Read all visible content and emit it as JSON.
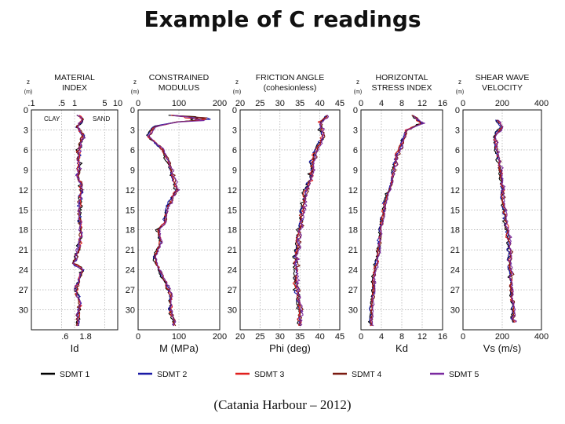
{
  "title": "Example of C readings",
  "caption": "(Catania Harbour – 2012)",
  "chart_data": {
    "type": "line",
    "depth_axis": {
      "label": "z",
      "unit": "(m)",
      "ticks": [
        0,
        3,
        6,
        9,
        12,
        15,
        18,
        21,
        24,
        27,
        30
      ],
      "ylim": [
        0,
        33
      ],
      "inverted": true
    },
    "legend": {
      "placement": "bottom",
      "entries": [
        {
          "name": "SDMT 1",
          "color": "#000000"
        },
        {
          "name": "SDMT 2",
          "color": "#1a1aa6"
        },
        {
          "name": "SDMT 3",
          "color": "#e0201e"
        },
        {
          "name": "SDMT 4",
          "color": "#7a1a10"
        },
        {
          "name": "SDMT 5",
          "color": "#7a2aa0"
        }
      ]
    },
    "panels": [
      {
        "id": "id",
        "title": [
          "MATERIAL",
          "INDEX"
        ],
        "scale": "log",
        "xlim": [
          0.1,
          10
        ],
        "top_ticks": [
          {
            "label": ".1",
            "value": 0.1
          },
          {
            "label": ".5",
            "value": 0.5
          },
          {
            "label": "1",
            "value": 1
          },
          {
            "label": "5",
            "value": 5
          },
          {
            "label": "10",
            "value": 10
          }
        ],
        "bottom_ticks": [
          {
            "label": ".6",
            "value": 0.6
          },
          {
            "label": "1.8",
            "value": 1.8
          }
        ],
        "xlabel": "Id",
        "annotations": [
          "CLAY",
          "SAND"
        ],
        "profile": [
          [
            0.8,
            1.2
          ],
          [
            1.5,
            1.6
          ],
          [
            2.5,
            1.1
          ],
          [
            3,
            1.3
          ],
          [
            4,
            1.6
          ],
          [
            6,
            1.2
          ],
          [
            8,
            1.3
          ],
          [
            10,
            1.2
          ],
          [
            12,
            1.5
          ],
          [
            14,
            1.3
          ],
          [
            16,
            1.3
          ],
          [
            18,
            1.4
          ],
          [
            20,
            1.3
          ],
          [
            22,
            1.1
          ],
          [
            23,
            0.9
          ],
          [
            24,
            1.5
          ],
          [
            25,
            1.3
          ],
          [
            27,
            1.1
          ],
          [
            29,
            1.3
          ],
          [
            31,
            1.2
          ],
          [
            32.5,
            1.2
          ]
        ]
      },
      {
        "id": "m",
        "title": [
          "CONSTRAINED",
          "MODULUS"
        ],
        "scale": "linear",
        "xlim": [
          0,
          200
        ],
        "top_ticks": [
          {
            "label": "0",
            "value": 0
          },
          {
            "label": "100",
            "value": 100
          },
          {
            "label": "200",
            "value": 200
          }
        ],
        "bottom_ticks": [
          {
            "label": "0",
            "value": 0
          },
          {
            "label": "100",
            "value": 100
          },
          {
            "label": "200",
            "value": 200
          }
        ],
        "xlabel": "M (MPa)",
        "profile": [
          [
            0.8,
            80
          ],
          [
            1.5,
            120
          ],
          [
            2.5,
            40
          ],
          [
            4,
            25
          ],
          [
            6,
            60
          ],
          [
            8,
            75
          ],
          [
            10,
            85
          ],
          [
            12,
            95
          ],
          [
            13,
            85
          ],
          [
            15,
            70
          ],
          [
            17,
            65
          ],
          [
            18,
            50
          ],
          [
            20,
            55
          ],
          [
            22,
            40
          ],
          [
            24,
            50
          ],
          [
            26,
            70
          ],
          [
            28,
            80
          ],
          [
            30,
            80
          ],
          [
            32.5,
            90
          ]
        ]
      },
      {
        "id": "phi",
        "title": [
          "FRICTION ANGLE",
          "(cohesionless)"
        ],
        "scale": "linear",
        "xlim": [
          20,
          45
        ],
        "top_ticks": [
          {
            "label": "20",
            "value": 20
          },
          {
            "label": "25",
            "value": 25
          },
          {
            "label": "30",
            "value": 30
          },
          {
            "label": "35",
            "value": 35
          },
          {
            "label": "40",
            "value": 40
          },
          {
            "label": "45",
            "value": 45
          }
        ],
        "bottom_ticks": [
          {
            "label": "20",
            "value": 20
          },
          {
            "label": "25",
            "value": 25
          },
          {
            "label": "30",
            "value": 30
          },
          {
            "label": "35",
            "value": 35
          },
          {
            "label": "40",
            "value": 40
          },
          {
            "label": "45",
            "value": 45
          }
        ],
        "xlabel": "Phi (deg)",
        "profile": [
          [
            0.8,
            42
          ],
          [
            2,
            40
          ],
          [
            4,
            41
          ],
          [
            6,
            39
          ],
          [
            8,
            38
          ],
          [
            10,
            38
          ],
          [
            12,
            36.5
          ],
          [
            14,
            36
          ],
          [
            16,
            35.5
          ],
          [
            18,
            35
          ],
          [
            20,
            34.5
          ],
          [
            22,
            34
          ],
          [
            24,
            34
          ],
          [
            26,
            34
          ],
          [
            28,
            34.5
          ],
          [
            30,
            35
          ],
          [
            32.5,
            35
          ]
        ]
      },
      {
        "id": "kd",
        "title": [
          "HORIZONTAL",
          "STRESS INDEX"
        ],
        "scale": "linear",
        "xlim": [
          0,
          16
        ],
        "top_ticks": [
          {
            "label": "0",
            "value": 0
          },
          {
            "label": "4",
            "value": 4
          },
          {
            "label": "8",
            "value": 8
          },
          {
            "label": "12",
            "value": 12
          },
          {
            "label": "16",
            "value": 16
          }
        ],
        "bottom_ticks": [
          {
            "label": "0",
            "value": 0
          },
          {
            "label": "4",
            "value": 4
          },
          {
            "label": "8",
            "value": 8
          },
          {
            "label": "12",
            "value": 12
          },
          {
            "label": "16",
            "value": 16
          }
        ],
        "xlabel": "Kd",
        "profile": [
          [
            0.8,
            10
          ],
          [
            2,
            12
          ],
          [
            3,
            9
          ],
          [
            5,
            8
          ],
          [
            7,
            7
          ],
          [
            9,
            6.5
          ],
          [
            11,
            6
          ],
          [
            13,
            5
          ],
          [
            15,
            4.5
          ],
          [
            17,
            4
          ],
          [
            19,
            3.8
          ],
          [
            21,
            3.5
          ],
          [
            23,
            3
          ],
          [
            25,
            2.5
          ],
          [
            27,
            2.5
          ],
          [
            29,
            2.2
          ],
          [
            31,
            2
          ],
          [
            32.5,
            2
          ]
        ]
      },
      {
        "id": "vs",
        "title": [
          "SHEAR WAVE",
          "VELOCITY"
        ],
        "scale": "linear",
        "xlim": [
          0,
          400
        ],
        "top_ticks": [
          {
            "label": "0",
            "value": 0
          },
          {
            "label": "200",
            "value": 200
          },
          {
            "label": "400",
            "value": 400
          }
        ],
        "bottom_ticks": [
          {
            "label": "0",
            "value": 0
          },
          {
            "label": "200",
            "value": 200
          },
          {
            "label": "400",
            "value": 400
          }
        ],
        "xlabel": "Vs (m/s)",
        "profile": [
          [
            1.5,
            170
          ],
          [
            2.5,
            200
          ],
          [
            4,
            160
          ],
          [
            6,
            170
          ],
          [
            8,
            185
          ],
          [
            10,
            195
          ],
          [
            12,
            200
          ],
          [
            14,
            205
          ],
          [
            16,
            215
          ],
          [
            18,
            225
          ],
          [
            20,
            235
          ],
          [
            22,
            240
          ],
          [
            24,
            240
          ],
          [
            26,
            245
          ],
          [
            28,
            250
          ],
          [
            30,
            255
          ],
          [
            32,
            260
          ]
        ]
      }
    ]
  }
}
